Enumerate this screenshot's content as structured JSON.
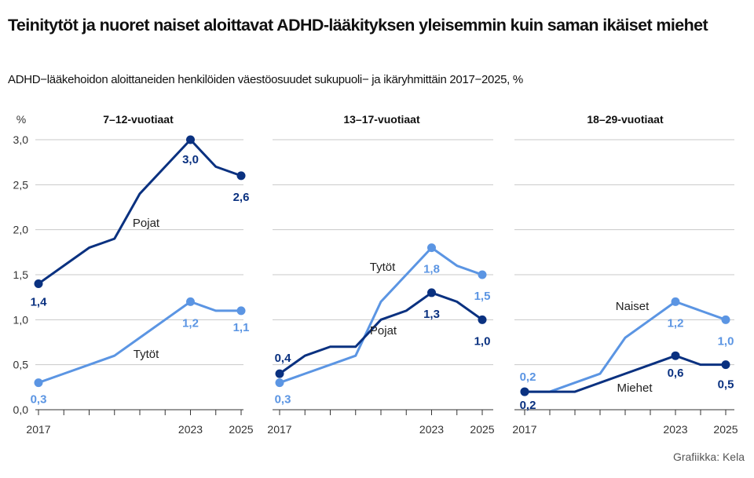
{
  "title": "Teinitytöt ja nuoret naiset aloittavat ADHD-lääkityksen yleisemmin kuin saman ikäiset miehet",
  "subtitle": "ADHD−lääkehoidon aloittaneiden henkilöiden väestöosuudet sukupuoli− ja ikäryhmittäin 2017−2025, %",
  "source": "Grafiikka: Kela",
  "colors": {
    "dark": "#0a3180",
    "light": "#5b95e3",
    "grid": "#c8c8c8"
  },
  "chart_data": [
    {
      "type": "line",
      "title": "7–12-vuotiaat",
      "ylabel": "%",
      "ylim": [
        0,
        3.0
      ],
      "yticks": [
        "0,0",
        "0,5",
        "1,0",
        "1,5",
        "2,0",
        "2,5",
        "3,0"
      ],
      "x": [
        2017,
        2018,
        2019,
        2020,
        2021,
        2022,
        2023,
        2024,
        2025
      ],
      "xticklabels": [
        "2017",
        "2023",
        "2025"
      ],
      "series": [
        {
          "name": "Pojat",
          "color": "dark",
          "values": [
            1.4,
            1.6,
            1.8,
            1.9,
            2.4,
            2.7,
            3.0,
            2.7,
            2.6
          ],
          "labels": [
            "1,4",
            "3,0",
            "2,6"
          ]
        },
        {
          "name": "Tytöt",
          "color": "light",
          "values": [
            0.3,
            0.4,
            0.5,
            0.6,
            0.8,
            1.0,
            1.2,
            1.1,
            1.1
          ],
          "labels": [
            "0,3",
            "1,2",
            "1,1"
          ]
        }
      ]
    },
    {
      "type": "line",
      "title": "13–17-vuotiaat",
      "ylim": [
        0,
        3.0
      ],
      "x": [
        2017,
        2018,
        2019,
        2020,
        2021,
        2022,
        2023,
        2024,
        2025
      ],
      "xticklabels": [
        "2017",
        "2023",
        "2025"
      ],
      "series": [
        {
          "name": "Pojat",
          "color": "dark",
          "values": [
            0.4,
            0.6,
            0.7,
            0.7,
            1.0,
            1.1,
            1.3,
            1.2,
            1.0
          ],
          "labels": [
            "0,4",
            "1,3",
            "1,0"
          ]
        },
        {
          "name": "Tytöt",
          "color": "light",
          "values": [
            0.3,
            0.4,
            0.5,
            0.6,
            1.2,
            1.5,
            1.8,
            1.6,
            1.5
          ],
          "labels": [
            "0,3",
            "1,8",
            "1,5"
          ]
        }
      ]
    },
    {
      "type": "line",
      "title": "18–29-vuotiaat",
      "ylim": [
        0,
        3.0
      ],
      "x": [
        2017,
        2018,
        2019,
        2020,
        2021,
        2022,
        2023,
        2024,
        2025
      ],
      "xticklabels": [
        "2017",
        "2023",
        "2025"
      ],
      "series": [
        {
          "name": "Miehet",
          "color": "dark",
          "values": [
            0.2,
            0.2,
            0.2,
            0.3,
            0.4,
            0.5,
            0.6,
            0.5,
            0.5
          ],
          "labels": [
            "0,2",
            "0,6",
            "0,5"
          ]
        },
        {
          "name": "Naiset",
          "color": "light",
          "values": [
            0.2,
            0.2,
            0.3,
            0.4,
            0.8,
            1.0,
            1.2,
            1.1,
            1.0
          ],
          "labels": [
            "0,2",
            "1,2",
            "1,0"
          ]
        }
      ]
    }
  ]
}
